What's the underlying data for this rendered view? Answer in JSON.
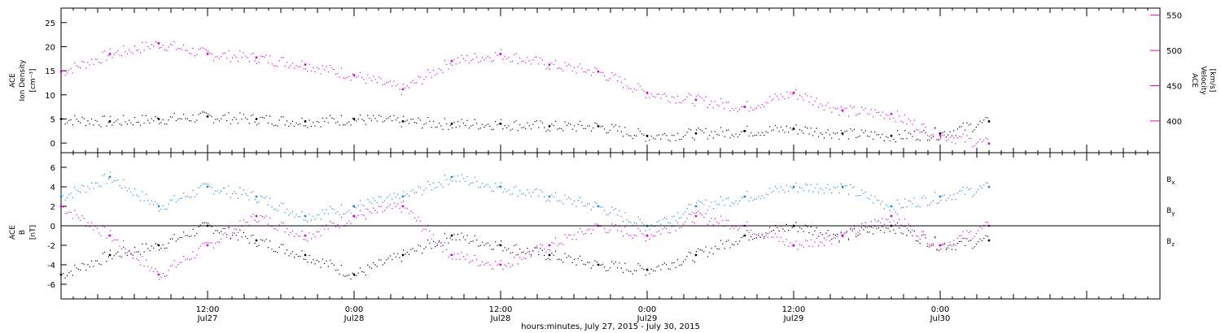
{
  "colors": {
    "black": "#000000",
    "magenta": "#d600d6",
    "blue": "#1e88d8"
  },
  "chart_data": [
    {
      "type": "scatter",
      "panel": "top",
      "y_axis_label": [
        "ACE",
        "Ion Density",
        "[cm⁻³]"
      ],
      "y2_axis_label": [
        "ACE",
        "Velocity",
        "[km/s]"
      ],
      "ylim": [
        -2,
        28
      ],
      "y2lim": [
        355,
        560
      ],
      "yticks": [
        0,
        5,
        10,
        15,
        20,
        25
      ],
      "y2ticks": [
        400,
        450,
        500,
        550
      ],
      "series": [
        {
          "axis": "left",
          "color": "#000000",
          "x": [
            0,
            4,
            8,
            12,
            16,
            20,
            24,
            28,
            32,
            36,
            40,
            44,
            48,
            52,
            56,
            60,
            64,
            68,
            72,
            76
          ],
          "y": [
            5,
            4.5,
            5,
            5.5,
            5,
            4.5,
            5,
            4.5,
            4,
            4,
            3.5,
            3.5,
            1.5,
            2,
            2.5,
            3,
            2,
            1.5,
            2,
            4.5
          ]
        },
        {
          "axis": "right",
          "color": "#d600d6",
          "x": [
            0,
            4,
            8,
            12,
            16,
            20,
            24,
            28,
            32,
            36,
            40,
            44,
            48,
            52,
            56,
            60,
            64,
            68,
            72,
            76
          ],
          "y": [
            470,
            495,
            510,
            495,
            490,
            480,
            465,
            445,
            485,
            495,
            480,
            470,
            440,
            430,
            420,
            440,
            415,
            410,
            380,
            368
          ]
        }
      ]
    },
    {
      "type": "scatter",
      "panel": "bottom",
      "y_axis_label": [
        "ACE",
        "B",
        "[nT]"
      ],
      "ylim": [
        -7.5,
        7.5
      ],
      "yticks": [
        -6,
        -4,
        -2,
        0,
        2,
        4,
        6
      ],
      "legend": [
        {
          "name": "B",
          "sub": "x",
          "color": "#000000"
        },
        {
          "name": "B",
          "sub": "y",
          "color": "#1e88d8"
        },
        {
          "name": "B",
          "sub": "z",
          "color": "#d600d6"
        }
      ],
      "series": [
        {
          "name": "Bx",
          "color": "#000000",
          "x": [
            0,
            4,
            8,
            12,
            16,
            20,
            24,
            28,
            32,
            36,
            40,
            44,
            48,
            52,
            56,
            60,
            64,
            68,
            72,
            76
          ],
          "y": [
            -5,
            -3,
            -2,
            0,
            -1.5,
            -3,
            -5,
            -3,
            -1,
            -2,
            -3,
            -4,
            -4.5,
            -3,
            -1,
            0,
            -1,
            0,
            -2,
            -1.5
          ]
        },
        {
          "name": "By",
          "color": "#1e88d8",
          "x": [
            0,
            4,
            8,
            12,
            16,
            20,
            24,
            28,
            32,
            36,
            40,
            44,
            48,
            52,
            56,
            60,
            64,
            68,
            72,
            76
          ],
          "y": [
            3,
            5,
            2,
            4,
            3,
            1,
            2,
            3,
            5,
            4,
            3,
            2,
            0,
            2,
            3,
            4,
            4,
            2,
            3,
            4
          ]
        },
        {
          "name": "Bz",
          "color": "#d600d6",
          "x": [
            0,
            4,
            8,
            12,
            16,
            20,
            24,
            28,
            32,
            36,
            40,
            44,
            48,
            52,
            56,
            60,
            64,
            68,
            72,
            76
          ],
          "y": [
            2,
            -1,
            -5,
            -2,
            1,
            -1,
            1,
            2,
            -3,
            -4,
            -2,
            0,
            -1,
            1,
            0,
            -2,
            -1,
            1,
            -2,
            0
          ]
        }
      ]
    }
  ],
  "x_axis": {
    "xlim": [
      0,
      90
    ],
    "title": "hours:minutes, July 27, 2015 - July 30, 2015",
    "major_ticks": [
      {
        "x": 12,
        "time": "12:00",
        "date": "Jul27"
      },
      {
        "x": 24,
        "time": "0:00",
        "date": "Jul28"
      },
      {
        "x": 36,
        "time": "12:00",
        "date": "Jul28"
      },
      {
        "x": 48,
        "time": "0:00",
        "date": "Jul29"
      },
      {
        "x": 60,
        "time": "12:00",
        "date": "Jul29"
      },
      {
        "x": 72,
        "time": "0:00",
        "date": "Jul30"
      }
    ]
  }
}
